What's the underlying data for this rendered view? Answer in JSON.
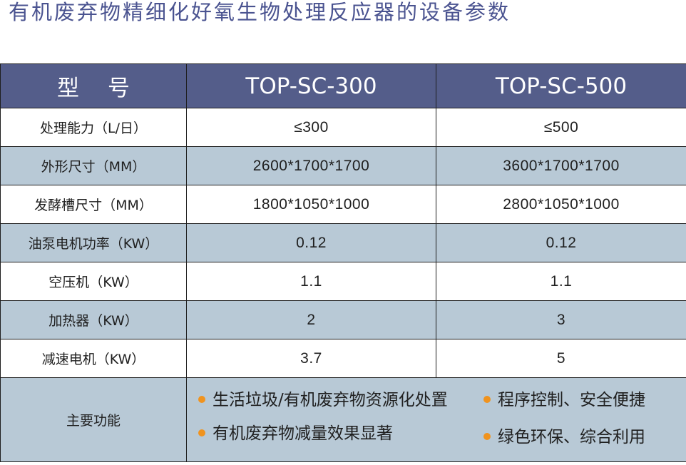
{
  "page": {
    "title": "有机废弃物精细化好氧生物处理反应器的设备参数"
  },
  "table": {
    "header": {
      "label": "型号",
      "models": [
        "TOP-SC-300",
        "TOP-SC-500"
      ]
    },
    "rows": [
      {
        "label": "处理能力（L/日）",
        "values": [
          "≤300",
          "≤500"
        ]
      },
      {
        "label": "外形尺寸（MM）",
        "values": [
          "2600*1700*1700",
          "3600*1700*1700"
        ]
      },
      {
        "label": "发酵槽尺寸（MM）",
        "values": [
          "1800*1050*1000",
          "2800*1050*1000"
        ]
      },
      {
        "label": "油泵电机功率（KW）",
        "values": [
          "0.12",
          "0.12"
        ]
      },
      {
        "label": "空压机（KW）",
        "values": [
          "1.1",
          "1.1"
        ]
      },
      {
        "label": "加热器（KW）",
        "values": [
          "2",
          "3"
        ]
      },
      {
        "label": "减速电机（KW）",
        "values": [
          "3.7",
          "5"
        ]
      }
    ],
    "features": {
      "label": "主要功能",
      "items": [
        "生活垃圾/有机废弃物资源化处置",
        "程序控制、安全便捷",
        "有机废弃物减量效果显著",
        "绿色环保、综合利用"
      ]
    }
  },
  "colors": {
    "title": "#4a5390",
    "header_bg": "#545d8a",
    "row_alt_bg": "#b8c9d6",
    "bullet": "#f0931e",
    "border": "#1e1e1e"
  }
}
